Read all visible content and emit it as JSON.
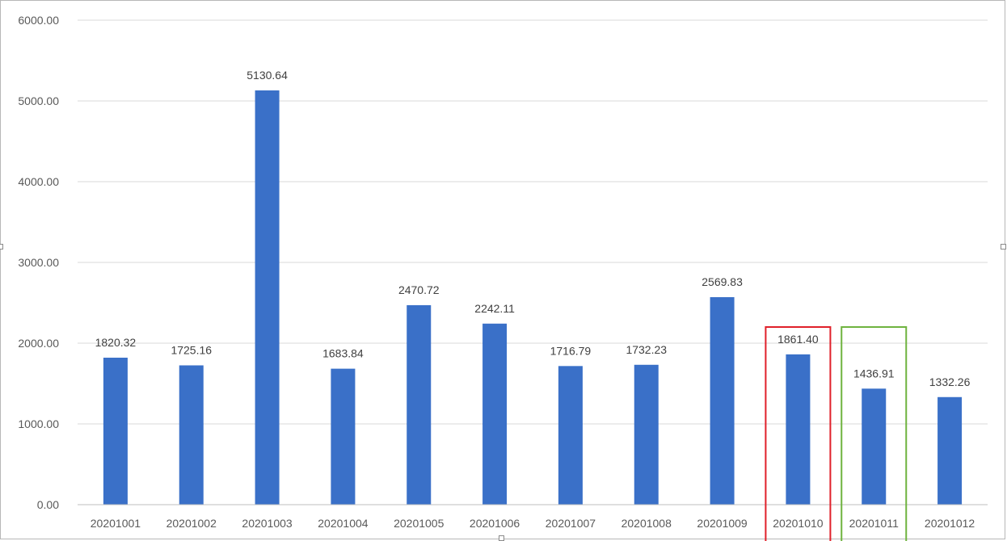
{
  "chart_data": {
    "type": "bar",
    "title": "",
    "xlabel": "",
    "ylabel": "",
    "categories": [
      "20201001",
      "20201002",
      "20201003",
      "20201004",
      "20201005",
      "20201006",
      "20201007",
      "20201008",
      "20201009",
      "20201010",
      "20201011",
      "20201012"
    ],
    "values": [
      1820.32,
      1725.16,
      5130.64,
      1683.84,
      2470.72,
      2242.11,
      1716.79,
      1732.23,
      2569.83,
      1861.4,
      1436.91,
      1332.26
    ],
    "value_labels": [
      "1820.32",
      "1725.16",
      "5130.64",
      "1683.84",
      "2470.72",
      "2242.11",
      "1716.79",
      "1732.23",
      "2569.83",
      "1861.40",
      "1436.91",
      "1332.26"
    ],
    "ylim": [
      0,
      6000
    ],
    "y_ticks": [
      0,
      1000,
      2000,
      3000,
      4000,
      5000,
      6000
    ],
    "y_tick_labels": [
      "0.00",
      "1000.00",
      "2000.00",
      "3000.00",
      "4000.00",
      "5000.00",
      "6000.00"
    ],
    "grid": true,
    "legend": "none",
    "bar_color": "#3a70c8",
    "grid_color": "#d9d9d9",
    "highlights": [
      {
        "category": "20201010",
        "color": "#e0202a"
      },
      {
        "category": "20201011",
        "color": "#6fb33f"
      }
    ]
  }
}
